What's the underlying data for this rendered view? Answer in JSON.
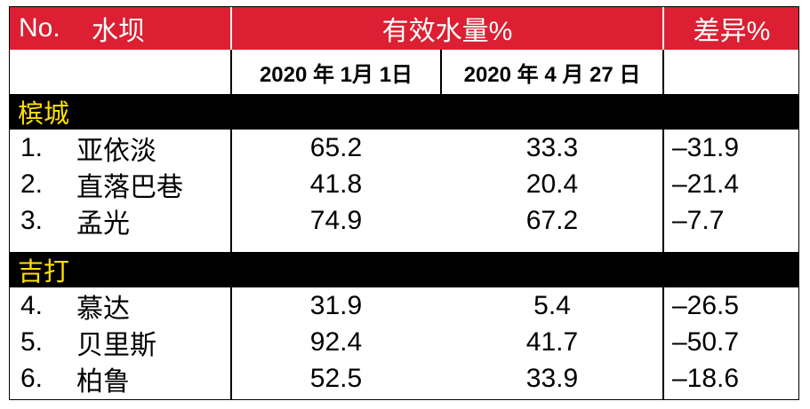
{
  "header": {
    "col_no": "No.",
    "col_dam": "水坝",
    "col_volume": "有效水量%",
    "col_diff": "差异%",
    "date1": "2020 年 1月 1日",
    "date2": "2020 年 4 月 27 日"
  },
  "sections": [
    {
      "name": "槟城",
      "rows": [
        {
          "no": "1.",
          "dam": "亚依淡",
          "v1": "65.2",
          "v2": "33.3",
          "diff": "–31.9"
        },
        {
          "no": "2.",
          "dam": "直落巴巷",
          "v1": "41.8",
          "v2": "20.4",
          "diff": "–21.4"
        },
        {
          "no": "3.",
          "dam": "孟光",
          "v1": "74.9",
          "v2": "67.2",
          "diff": "–7.7"
        }
      ]
    },
    {
      "name": "吉打",
      "rows": [
        {
          "no": "4.",
          "dam": "慕达",
          "v1": "31.9",
          "v2": "5.4",
          "diff": "–26.5"
        },
        {
          "no": "5.",
          "dam": "贝里斯",
          "v1": "92.4",
          "v2": "41.7",
          "diff": "–50.7"
        },
        {
          "no": "6.",
          "dam": "柏鲁",
          "v1": "52.5",
          "v2": "33.9",
          "diff": "–18.6"
        }
      ]
    }
  ],
  "colors": {
    "header_bg": "#dc1f32",
    "section_bg": "#000000",
    "section_text": "#ffe000"
  }
}
